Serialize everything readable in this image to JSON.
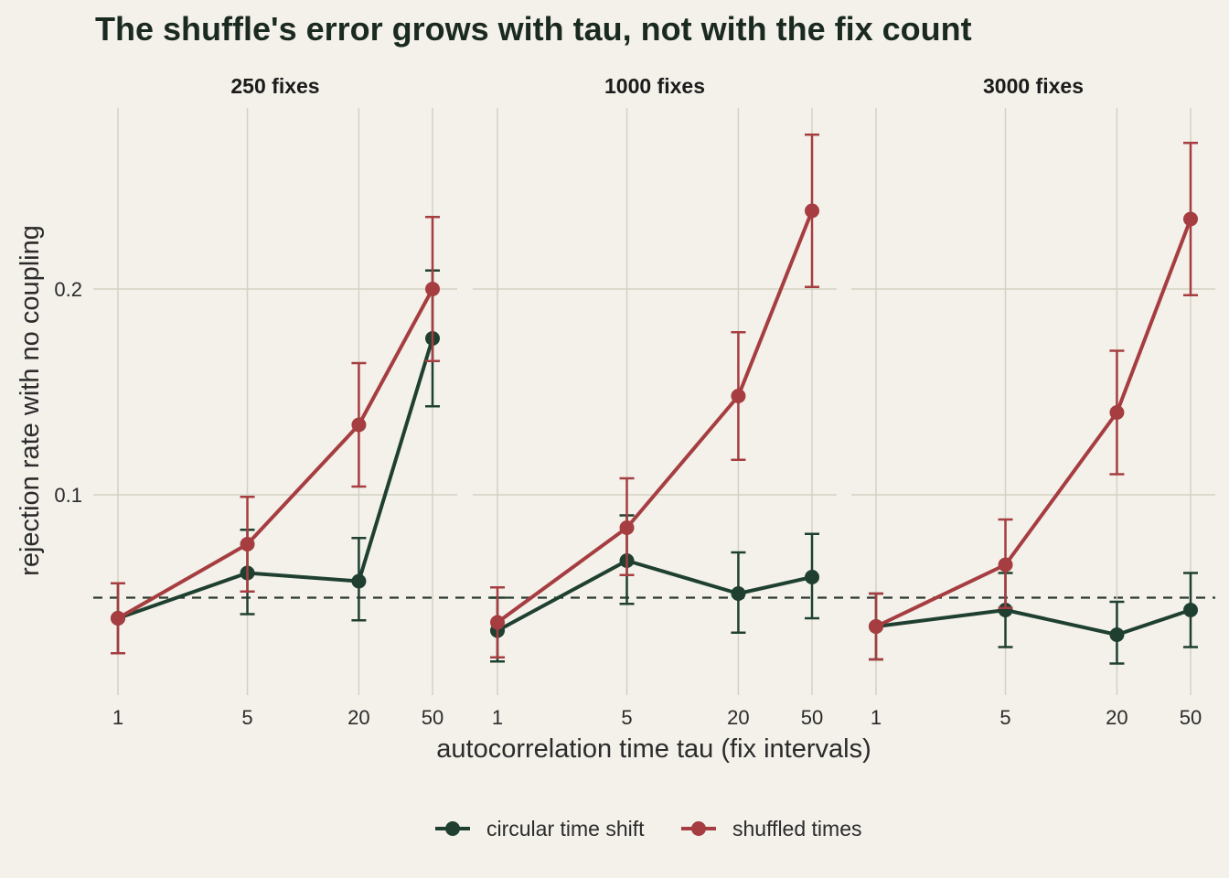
{
  "chart_data": {
    "type": "line",
    "title": "The shuffle's error grows with tau, not with the fix count",
    "xlabel": "autocorrelation time tau (fix intervals)",
    "ylabel": "rejection rate with no coupling",
    "x_scale": "log",
    "x": [
      1,
      5,
      20,
      50
    ],
    "x_tick_labels": [
      "1",
      "5",
      "20",
      "50"
    ],
    "y_ticks": [
      0.1,
      0.2
    ],
    "y_tick_labels": [
      "0.1",
      "0.2"
    ],
    "ylim": [
      0.015,
      0.285
    ],
    "reference_line": 0.05,
    "grid": true,
    "legend_position": "bottom",
    "colors": {
      "circular time shift": "#1f4030",
      "shuffled times": "#a63d40"
    },
    "panels": [
      {
        "label": "250 fixes",
        "series": [
          {
            "name": "circular time shift",
            "values": [
              0.04,
              0.062,
              0.058,
              0.176
            ],
            "lower": [
              0.023,
              0.042,
              0.039,
              0.143
            ],
            "upper": [
              0.057,
              0.083,
              0.079,
              0.209
            ]
          },
          {
            "name": "shuffled times",
            "values": [
              0.04,
              0.076,
              0.134,
              0.2
            ],
            "lower": [
              0.023,
              0.053,
              0.104,
              0.165
            ],
            "upper": [
              0.057,
              0.099,
              0.164,
              0.235
            ]
          }
        ]
      },
      {
        "label": "1000 fixes",
        "series": [
          {
            "name": "circular time shift",
            "values": [
              0.034,
              0.068,
              0.052,
              0.06
            ],
            "lower": [
              0.019,
              0.047,
              0.033,
              0.04
            ],
            "upper": [
              0.05,
              0.09,
              0.072,
              0.081
            ]
          },
          {
            "name": "shuffled times",
            "values": [
              0.038,
              0.084,
              0.148,
              0.238
            ],
            "lower": [
              0.021,
              0.061,
              0.117,
              0.201
            ],
            "upper": [
              0.055,
              0.108,
              0.179,
              0.275
            ]
          }
        ]
      },
      {
        "label": "3000 fixes",
        "series": [
          {
            "name": "circular time shift",
            "values": [
              0.036,
              0.044,
              0.032,
              0.044
            ],
            "lower": [
              0.02,
              0.026,
              0.018,
              0.026
            ],
            "upper": [
              0.052,
              0.062,
              0.048,
              0.062
            ]
          },
          {
            "name": "shuffled times",
            "values": [
              0.036,
              0.066,
              0.14,
              0.234
            ],
            "lower": [
              0.02,
              0.045,
              0.11,
              0.197
            ],
            "upper": [
              0.052,
              0.088,
              0.17,
              0.271
            ]
          }
        ]
      }
    ]
  }
}
